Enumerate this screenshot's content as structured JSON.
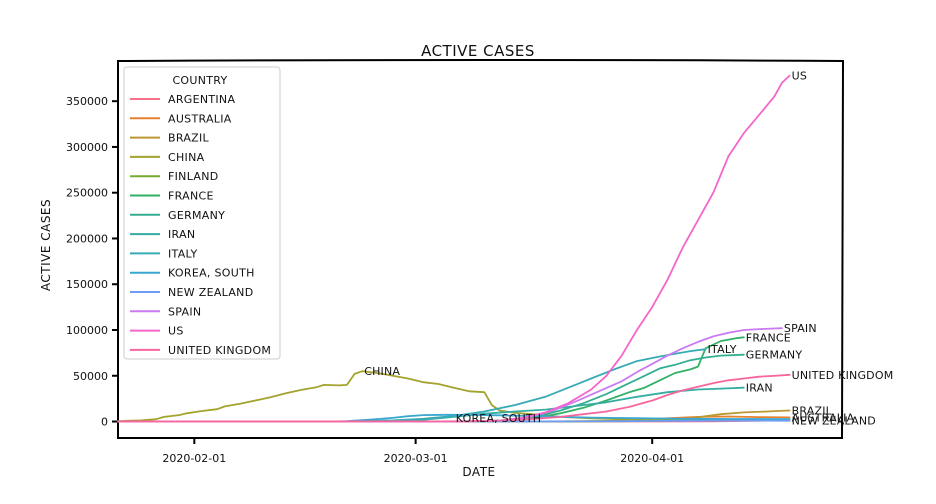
{
  "chart_data": {
    "type": "line",
    "title": "ACTIVE CASES",
    "xlabel": "DATE",
    "ylabel": "ACTIVE CASES",
    "x_start": "2020-01-22",
    "x_tick_labels": [
      "2020-02-01",
      "2020-03-01",
      "2020-04-01"
    ],
    "xlim": [
      "2020-01-22",
      "2020-04-26"
    ],
    "ylim": [
      -18000,
      395000
    ],
    "y_ticks": [
      0,
      50000,
      100000,
      150000,
      200000,
      250000,
      300000,
      350000
    ],
    "legend": {
      "title": "COUNTRY",
      "placement": "top-left"
    },
    "grid": false,
    "series": [
      {
        "name": "ARGENTINA",
        "color": "#f77189",
        "label": "",
        "values": [
          [
            71,
            0
          ],
          [
            78,
            300
          ],
          [
            84,
            900
          ],
          [
            88,
            1400
          ]
        ]
      },
      {
        "name": "AUSTRALIA",
        "color": "#e6812f",
        "label": "AUSTRALIA",
        "values": [
          [
            56,
            0
          ],
          [
            63,
            400
          ],
          [
            68,
            1500
          ],
          [
            72,
            3500
          ],
          [
            76,
            5000
          ],
          [
            80,
            5500
          ],
          [
            84,
            4800
          ],
          [
            88,
            4500
          ]
        ]
      },
      {
        "name": "BRAZIL",
        "color": "#bb9832",
        "label": "BRAZIL",
        "values": [
          [
            60,
            0
          ],
          [
            66,
            300
          ],
          [
            71,
            1200
          ],
          [
            75,
            3500
          ],
          [
            79,
            8000
          ],
          [
            82,
            10000
          ],
          [
            85,
            11000
          ],
          [
            88,
            12000
          ]
        ]
      },
      {
        "name": "CHINA",
        "color": "#a3a32e",
        "label": "CHINA",
        "values": [
          [
            0,
            500
          ],
          [
            3,
            1200
          ],
          [
            5,
            2500
          ],
          [
            6,
            5000
          ],
          [
            8,
            7000
          ],
          [
            9,
            9000
          ],
          [
            11,
            11500
          ],
          [
            13,
            13500
          ],
          [
            14,
            16500
          ],
          [
            16,
            19500
          ],
          [
            18,
            23000
          ],
          [
            20,
            26500
          ],
          [
            22,
            31000
          ],
          [
            24,
            34500
          ],
          [
            26,
            37500
          ],
          [
            27,
            40000
          ],
          [
            29,
            39500
          ],
          [
            30,
            40000
          ],
          [
            31,
            52000
          ],
          [
            32,
            55000
          ],
          [
            34,
            53000
          ],
          [
            36,
            50000
          ],
          [
            38,
            47000
          ],
          [
            40,
            43000
          ],
          [
            42,
            41000
          ],
          [
            44,
            37000
          ],
          [
            46,
            33000
          ],
          [
            48,
            32000
          ],
          [
            49,
            18000
          ],
          [
            50,
            12000
          ],
          [
            52,
            9500
          ],
          [
            55,
            7500
          ],
          [
            58,
            5000
          ],
          [
            62,
            3500
          ],
          [
            66,
            2500
          ],
          [
            70,
            2000
          ],
          [
            75,
            1500
          ],
          [
            80,
            1200
          ],
          [
            88,
            1000
          ]
        ]
      },
      {
        "name": "FINLAND",
        "color": "#76ab31",
        "label": "",
        "values": [
          [
            50,
            0
          ],
          [
            60,
            200
          ],
          [
            70,
            800
          ],
          [
            80,
            1500
          ],
          [
            88,
            2000
          ]
        ]
      },
      {
        "name": "FRANCE",
        "color": "#32b166",
        "label": "FRANCE",
        "values": [
          [
            40,
            0
          ],
          [
            48,
            400
          ],
          [
            52,
            2000
          ],
          [
            55,
            4500
          ],
          [
            58,
            9000
          ],
          [
            61,
            15000
          ],
          [
            64,
            23000
          ],
          [
            67,
            32000
          ],
          [
            69,
            37000
          ],
          [
            71,
            45000
          ],
          [
            73,
            53000
          ],
          [
            75,
            57000
          ],
          [
            76,
            60000
          ],
          [
            77,
            80000
          ],
          [
            79,
            88000
          ],
          [
            81,
            91000
          ],
          [
            82,
            92000
          ]
        ]
      },
      {
        "name": "GERMANY",
        "color": "#34ae91",
        "label": "GERMANY",
        "values": [
          [
            40,
            0
          ],
          [
            48,
            300
          ],
          [
            52,
            2000
          ],
          [
            55,
            6000
          ],
          [
            58,
            12000
          ],
          [
            61,
            20000
          ],
          [
            64,
            30000
          ],
          [
            67,
            42000
          ],
          [
            69,
            50000
          ],
          [
            71,
            58000
          ],
          [
            73,
            62000
          ],
          [
            75,
            67000
          ],
          [
            77,
            70000
          ],
          [
            79,
            72000
          ],
          [
            82,
            73000
          ]
        ]
      },
      {
        "name": "IRAN",
        "color": "#36ada4",
        "label": "IRAN",
        "values": [
          [
            29,
            0
          ],
          [
            35,
            300
          ],
          [
            40,
            2000
          ],
          [
            44,
            5000
          ],
          [
            48,
            8500
          ],
          [
            52,
            11000
          ],
          [
            56,
            13000
          ],
          [
            60,
            17000
          ],
          [
            64,
            21000
          ],
          [
            68,
            27000
          ],
          [
            72,
            32000
          ],
          [
            76,
            35000
          ],
          [
            79,
            36000
          ],
          [
            82,
            37000
          ]
        ]
      },
      {
        "name": "ITALY",
        "color": "#37abb4",
        "label": "ITALY",
        "values": [
          [
            0,
            0
          ],
          [
            30,
            100
          ],
          [
            36,
            1200
          ],
          [
            40,
            3000
          ],
          [
            44,
            6000
          ],
          [
            48,
            11000
          ],
          [
            52,
            18000
          ],
          [
            56,
            27000
          ],
          [
            59,
            37000
          ],
          [
            62,
            47000
          ],
          [
            65,
            57000
          ],
          [
            68,
            66000
          ],
          [
            71,
            71000
          ],
          [
            73,
            74000
          ],
          [
            75,
            77000
          ],
          [
            77,
            79000
          ]
        ]
      },
      {
        "name": "KOREA, SOUTH",
        "color": "#39a7d0",
        "label": "KOREA, SOUTH",
        "values": [
          [
            0,
            0
          ],
          [
            28,
            50
          ],
          [
            30,
            500
          ],
          [
            33,
            2000
          ],
          [
            36,
            4000
          ],
          [
            38,
            5800
          ],
          [
            40,
            7000
          ],
          [
            43,
            7300
          ],
          [
            46,
            7200
          ],
          [
            50,
            6800
          ],
          [
            54,
            6000
          ],
          [
            58,
            5200
          ],
          [
            62,
            4300
          ],
          [
            66,
            3800
          ],
          [
            70,
            3400
          ],
          [
            75,
            3000
          ],
          [
            80,
            2800
          ],
          [
            88,
            2600
          ]
        ]
      },
      {
        "name": "NEW ZEALAND",
        "color": "#6e9bf4",
        "label": "NEW ZEALAND",
        "values": [
          [
            0,
            0
          ],
          [
            60,
            100
          ],
          [
            66,
            400
          ],
          [
            71,
            700
          ],
          [
            76,
            900
          ],
          [
            80,
            1000
          ],
          [
            84,
            1000
          ],
          [
            88,
            900
          ]
        ]
      },
      {
        "name": "SPAIN",
        "color": "#cc7af4",
        "label": "SPAIN",
        "values": [
          [
            0,
            0
          ],
          [
            46,
            100
          ],
          [
            50,
            1000
          ],
          [
            54,
            5000
          ],
          [
            57,
            12000
          ],
          [
            60,
            22000
          ],
          [
            63,
            33000
          ],
          [
            66,
            44000
          ],
          [
            68,
            54000
          ],
          [
            70,
            63000
          ],
          [
            72,
            72000
          ],
          [
            74,
            80000
          ],
          [
            76,
            87000
          ],
          [
            78,
            93000
          ],
          [
            80,
            97000
          ],
          [
            82,
            100000
          ],
          [
            84,
            101000
          ],
          [
            87,
            102000
          ]
        ]
      },
      {
        "name": "US",
        "color": "#f565cc",
        "label": "US",
        "values": [
          [
            0,
            0
          ],
          [
            45,
            100
          ],
          [
            50,
            1000
          ],
          [
            53,
            4000
          ],
          [
            56,
            10000
          ],
          [
            59,
            20000
          ],
          [
            62,
            35000
          ],
          [
            64,
            50000
          ],
          [
            66,
            72000
          ],
          [
            68,
            100000
          ],
          [
            70,
            125000
          ],
          [
            72,
            155000
          ],
          [
            74,
            190000
          ],
          [
            76,
            220000
          ],
          [
            78,
            250000
          ],
          [
            80,
            290000
          ],
          [
            82,
            315000
          ],
          [
            84,
            335000
          ],
          [
            86,
            355000
          ],
          [
            87,
            370000
          ],
          [
            88,
            378000
          ]
        ]
      },
      {
        "name": "UNITED KINGDOM",
        "color": "#f7679e",
        "label": "UNITED KINGDOM",
        "values": [
          [
            0,
            0
          ],
          [
            46,
            200
          ],
          [
            50,
            1000
          ],
          [
            54,
            2500
          ],
          [
            58,
            5000
          ],
          [
            61,
            8000
          ],
          [
            64,
            11000
          ],
          [
            67,
            16000
          ],
          [
            70,
            23000
          ],
          [
            72,
            29000
          ],
          [
            74,
            34000
          ],
          [
            76,
            38000
          ],
          [
            78,
            42000
          ],
          [
            80,
            45000
          ],
          [
            82,
            47000
          ],
          [
            84,
            49000
          ],
          [
            86,
            50000
          ],
          [
            88,
            51000
          ]
        ]
      }
    ]
  }
}
